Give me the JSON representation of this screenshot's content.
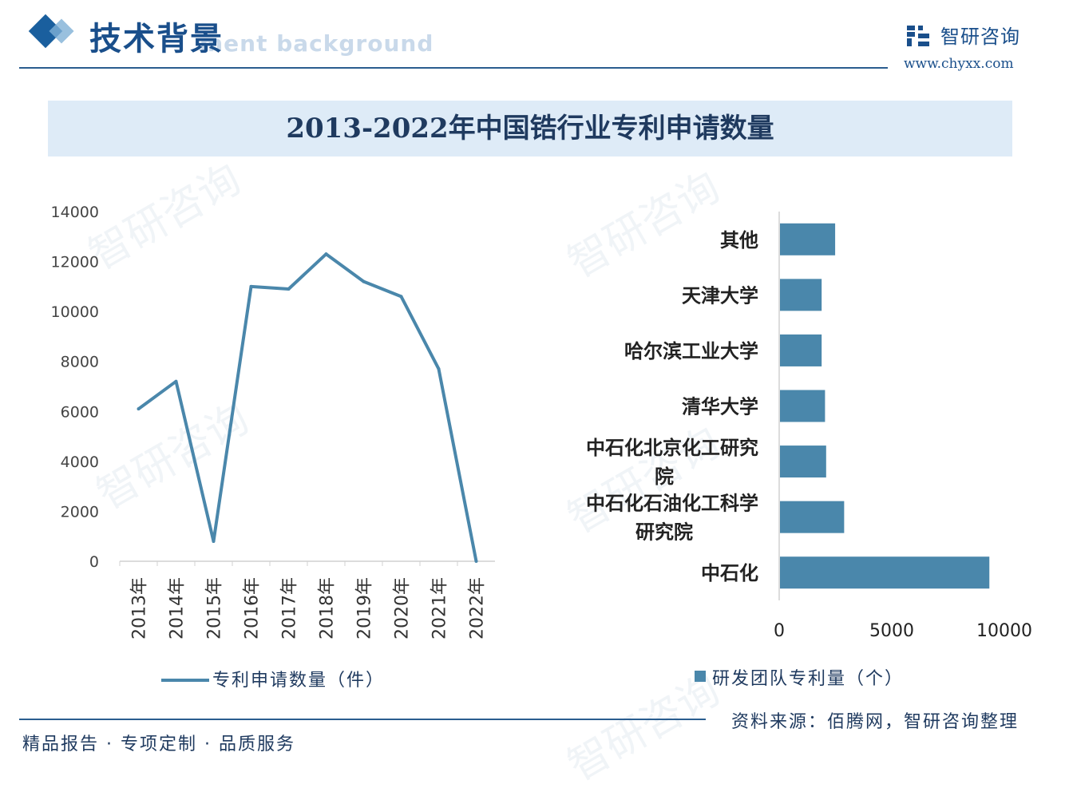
{
  "header": {
    "title": "技术背景",
    "subtitle": "ment background",
    "logo_name": "智研咨询",
    "logo_url": "www.chyxx.com"
  },
  "chart_title": "2013-2022年中国锆行业专利申请数量",
  "chart_data": [
    {
      "type": "line",
      "x": [
        "2013年",
        "2014年",
        "2015年",
        "2016年",
        "2017年",
        "2018年",
        "2019年",
        "2020年",
        "2021年",
        "2022年"
      ],
      "series": [
        {
          "name": "专利申请数量（件）",
          "values": [
            6100,
            7200,
            800,
            11000,
            10900,
            12300,
            11200,
            10600,
            7700,
            0
          ]
        }
      ],
      "yticks": [
        "0",
        "2000",
        "4000",
        "6000",
        "8000",
        "10000",
        "12000",
        "14000"
      ],
      "ylim": [
        0,
        14000
      ],
      "color": "#4a87ab",
      "grid": false,
      "legend": "bottom"
    },
    {
      "type": "bar",
      "orientation": "horizontal",
      "categories": [
        "其他",
        "天津大学",
        "哈尔滨工业大学",
        "清华大学",
        "中石化北京化工研究院",
        "中石化石油化工科学研究院",
        "中石化"
      ],
      "category_lines": [
        [
          "其他"
        ],
        [
          "天津大学"
        ],
        [
          "哈尔滨工业大学"
        ],
        [
          "清华大学"
        ],
        [
          "中石化北京化工研究",
          "院"
        ],
        [
          "中石化石油化工科学",
          "研究院"
        ],
        [
          "中石化"
        ]
      ],
      "series": [
        {
          "name": "研发团队专利量（个）",
          "values": [
            2450,
            1850,
            1850,
            2000,
            2050,
            2850,
            9300
          ]
        }
      ],
      "xticks": [
        "0",
        "5000",
        "10000"
      ],
      "xlim": [
        0,
        10000
      ],
      "color": "#4a87ab",
      "grid": false,
      "legend": "bottom"
    }
  ],
  "legend": {
    "line_label": "专利申请数量（件）",
    "bar_label": "研发团队专利量（个）"
  },
  "footer": {
    "left": "精品报告 · 专项定制 · 品质服务",
    "source": "资料来源：佰腾网，智研咨询整理"
  },
  "colors": {
    "brand": "#1a4f8b",
    "series": "#4a87ab",
    "title_band": "#deebf7"
  },
  "watermark": "智研咨询"
}
